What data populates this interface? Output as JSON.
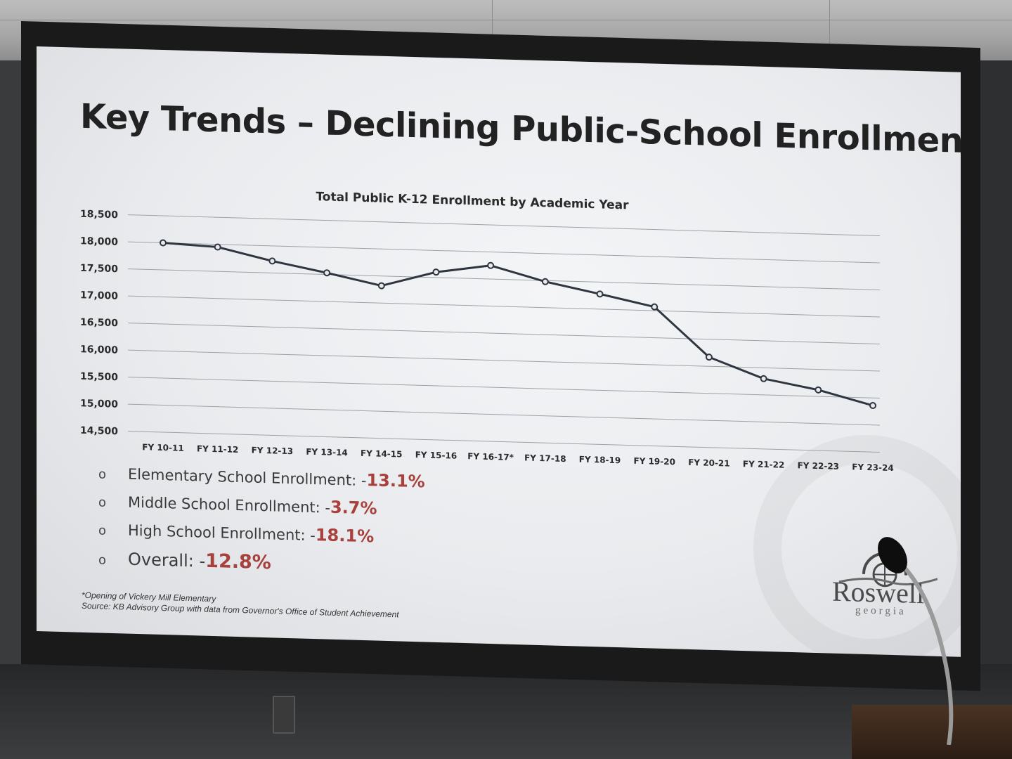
{
  "slide": {
    "title": "Key Trends – Declining Public-School Enrollment"
  },
  "chart_data": {
    "type": "line",
    "title": "Total Public K-12 Enrollment by Academic Year",
    "xlabel": "",
    "ylabel": "",
    "categories": [
      "FY 10-11",
      "FY 11-12",
      "FY 12-13",
      "FY 13-14",
      "FY 14-15",
      "FY 15-16",
      "FY 16-17*",
      "FY 17-18",
      "FY 18-19",
      "FY 19-20",
      "FY 20-21",
      "FY 21-22",
      "FY 22-23",
      "FY 23-24"
    ],
    "values": [
      18000,
      17950,
      17720,
      17530,
      17320,
      17600,
      17750,
      17480,
      17280,
      17070,
      16170,
      15800,
      15620,
      15360
    ],
    "ylim": [
      14500,
      18500
    ],
    "yticks": [
      "14,500",
      "15,000",
      "15,500",
      "16,000",
      "16,500",
      "17,000",
      "17,500",
      "18,000",
      "18,500"
    ],
    "grid": true,
    "legend": "none",
    "line_color": "#2f3640"
  },
  "bullets": [
    {
      "marker": "o",
      "label": "Elementary School Enrollment: -",
      "value": "13.1%"
    },
    {
      "marker": "o",
      "label": "Middle School Enrollment: -",
      "value": "3.7%"
    },
    {
      "marker": "o",
      "label": "High School Enrollment: -",
      "value": "18.1%"
    },
    {
      "marker": "o",
      "label": "Overall: -",
      "value": "12.8%"
    }
  ],
  "footnote": {
    "line1": "*Opening of Vickery Mill Elementary",
    "line2": "Source: KB Advisory Group with data from Governor's Office of Student Achievement"
  },
  "logo": {
    "name": "Roswell",
    "sub": "georgia"
  },
  "colors": {
    "accent": "#a8403c",
    "title": "#222222"
  }
}
